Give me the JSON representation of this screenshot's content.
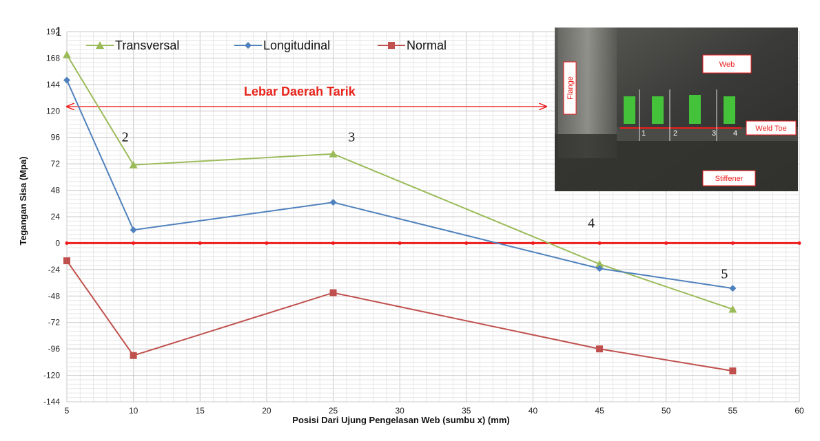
{
  "chart_data": {
    "type": "line",
    "xlabel": "Posisi  Dari  Ujung Pengelasan  Web (sumbu x)  (mm)",
    "ylabel": "Tegangan  Sisa (Mpa)",
    "xlim": [
      5,
      60
    ],
    "ylim": [
      -144,
      192
    ],
    "x_ticks": [
      5,
      10,
      15,
      20,
      25,
      30,
      35,
      40,
      45,
      50,
      55,
      60
    ],
    "y_ticks": [
      192,
      168,
      144,
      120,
      96,
      72,
      48,
      24,
      0,
      -24,
      -48,
      -72,
      -96,
      -120,
      -144
    ],
    "x_tick_labels": [
      "5",
      "10",
      "15",
      "20",
      "25",
      "30",
      "35",
      "40",
      "45",
      "50",
      "55",
      "60"
    ],
    "y_tick_labels": [
      "192",
      "168",
      "144",
      "120",
      "96",
      "72",
      "48",
      "24",
      "0",
      "-24",
      "-48",
      "-72",
      "-96",
      "-120",
      "-144"
    ],
    "grid": true,
    "legend_position": "top-left",
    "x": [
      5,
      10,
      25,
      45,
      55
    ],
    "series": [
      {
        "name": "Transversal",
        "color": "#9bbb59",
        "marker": "triangle",
        "values": [
          171,
          71,
          81,
          -19,
          -60
        ]
      },
      {
        "name": "Longitudinal",
        "color": "#4f81bd",
        "marker": "diamond",
        "values": [
          148,
          12,
          37,
          -23,
          -41
        ]
      },
      {
        "name": "Normal",
        "color": "#c0504d",
        "marker": "square",
        "values": [
          -16,
          -102,
          -45,
          -96,
          -116
        ]
      }
    ],
    "zero_line": {
      "y": 0,
      "color": "#ee1c1c"
    },
    "point_labels": [
      {
        "text": "1",
        "x": 5,
        "y": 192
      },
      {
        "text": "2",
        "x": 10,
        "y": 96
      },
      {
        "text": "3",
        "x": 27,
        "y": 96
      },
      {
        "text": "4",
        "x": 45,
        "y": 18
      },
      {
        "text": "5",
        "x": 55,
        "y": -28
      }
    ],
    "annotation": {
      "text": "Lebar Daerah Tarik",
      "arrow_from_x": 5,
      "arrow_to_x": 41,
      "arrow_y": 124,
      "color": "#ee1c1c"
    },
    "inset_photo": {
      "position": "top-right",
      "labels": [
        "Web",
        "Flange",
        "Weld Toe",
        "Stiffener",
        "1",
        "2",
        "3",
        "4"
      ]
    }
  }
}
